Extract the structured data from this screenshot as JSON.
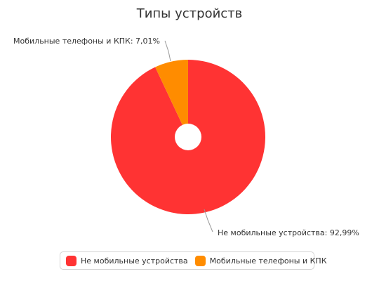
{
  "colors": {
    "segment_1": "#ff3333",
    "segment_2": "#ff8c00",
    "connector": "#999999"
  },
  "chart_data": {
    "type": "pie",
    "title": "Типы устройств",
    "inner_hole": true,
    "legend_position": "bottom",
    "slices": [
      {
        "name": "Не мобильные устройства",
        "value": 92.99,
        "value_label": "92,99%",
        "data_label": "Не мобильные устройства: 92,99%"
      },
      {
        "name": "Мобильные телефоны и КПК",
        "value": 7.01,
        "value_label": "7,01%",
        "data_label": "Мобильные телефоны и КПК: 7,01%"
      }
    ]
  }
}
